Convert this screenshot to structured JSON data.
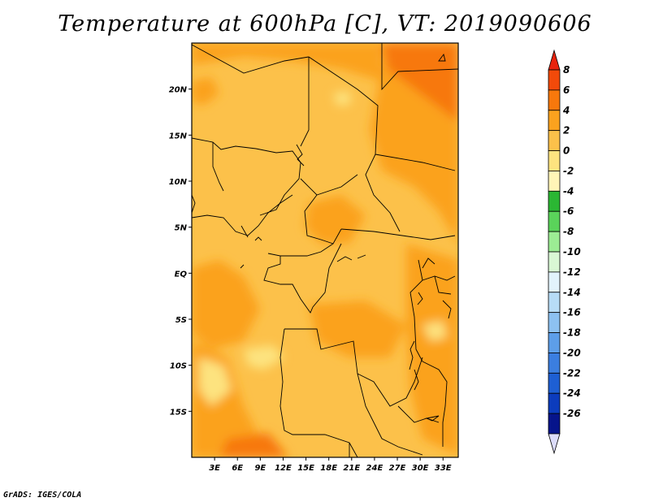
{
  "title": "Temperature at 600hPa [C], VT: 2019090606",
  "credit": "GrADS: IGES/COLA",
  "map": {
    "lon_range": [
      0,
      35
    ],
    "lat_range": [
      -20,
      25
    ],
    "lat_labels": [
      "20N",
      "15N",
      "10N",
      "5N",
      "EQ",
      "5S",
      "10S",
      "15S"
    ],
    "lat_values": [
      20,
      15,
      10,
      5,
      0,
      -5,
      -10,
      -15
    ],
    "lon_labels": [
      "3E",
      "6E",
      "9E",
      "12E",
      "15E",
      "18E",
      "21E",
      "24E",
      "27E",
      "30E",
      "33E"
    ],
    "lon_values": [
      3,
      6,
      9,
      12,
      15,
      18,
      21,
      24,
      27,
      30,
      33
    ]
  },
  "colorbar": {
    "labels": [
      "8",
      "6",
      "4",
      "2",
      "0",
      "-2",
      "-4",
      "-6",
      "-8",
      "-10",
      "-12",
      "-14",
      "-16",
      "-18",
      "-20",
      "-22",
      "-24",
      "-26"
    ],
    "colors": [
      "#e8230d",
      "#f24a0a",
      "#f7780c",
      "#fba21e",
      "#fcc14a",
      "#fde37f",
      "#fff5b7",
      "#2bb733",
      "#5ad35a",
      "#9cec94",
      "#d9f8d4",
      "#e2f3fb",
      "#b7dcf6",
      "#8dc1f1",
      "#5d9ee9",
      "#3b7ee0",
      "#1e5fd3",
      "#0c3cbd",
      "#06148b",
      "#dcdcfa"
    ]
  }
}
